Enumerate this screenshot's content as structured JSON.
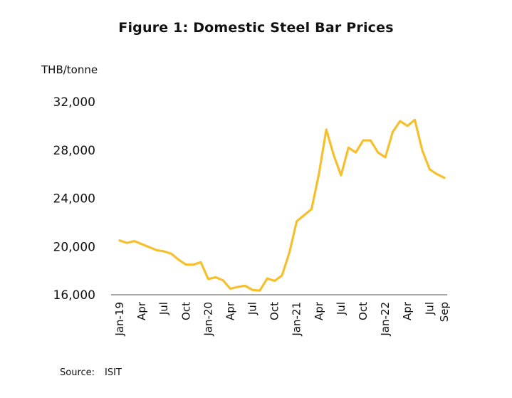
{
  "chart_data": {
    "type": "line",
    "title": "Figure 1: Domestic Steel Bar Prices",
    "ylabel": "THB/tonne",
    "xlabel": "",
    "ylim": [
      16000,
      32000
    ],
    "y_ticks": [
      "16,000",
      "20,000",
      "24,000",
      "28,000",
      "32,000"
    ],
    "y_tick_values": [
      16000,
      20000,
      24000,
      28000,
      32000
    ],
    "x": [
      "2019-01",
      "2019-02",
      "2019-03",
      "2019-04",
      "2019-05",
      "2019-06",
      "2019-07",
      "2019-08",
      "2019-09",
      "2019-10",
      "2019-11",
      "2019-12",
      "2020-01",
      "2020-02",
      "2020-03",
      "2020-04",
      "2020-05",
      "2020-06",
      "2020-07",
      "2020-08",
      "2020-09",
      "2020-10",
      "2020-11",
      "2020-12",
      "2021-01",
      "2021-02",
      "2021-03",
      "2021-04",
      "2021-05",
      "2021-06",
      "2021-07",
      "2021-08",
      "2021-09",
      "2021-10",
      "2021-11",
      "2021-12",
      "2022-01",
      "2022-02",
      "2022-03",
      "2022-04",
      "2022-05",
      "2022-06",
      "2022-07",
      "2022-08",
      "2022-09"
    ],
    "x_tick_labels": [
      {
        "label": "Jan-19",
        "index": 0
      },
      {
        "label": "Apr",
        "index": 3
      },
      {
        "label": "Jul",
        "index": 6
      },
      {
        "label": "Oct",
        "index": 9
      },
      {
        "label": "Jan-20",
        "index": 12
      },
      {
        "label": "Apr",
        "index": 15
      },
      {
        "label": "Jul",
        "index": 18
      },
      {
        "label": "Oct",
        "index": 21
      },
      {
        "label": "Jan-21",
        "index": 24
      },
      {
        "label": "Apr",
        "index": 27
      },
      {
        "label": "Jul",
        "index": 30
      },
      {
        "label": "Oct",
        "index": 33
      },
      {
        "label": "Jan-22",
        "index": 36
      },
      {
        "label": "Apr",
        "index": 39
      },
      {
        "label": "Jul",
        "index": 42
      },
      {
        "label": "Sep",
        "index": 44
      }
    ],
    "series": [
      {
        "values": [
          20500,
          20300,
          20450,
          20200,
          19950,
          19700,
          19600,
          19400,
          18900,
          18500,
          18500,
          18700,
          17300,
          17450,
          17200,
          16500,
          16650,
          16750,
          16400,
          16350,
          17350,
          17150,
          17600,
          19500,
          22100,
          22600,
          23100,
          26000,
          29700,
          27600,
          25900,
          28200,
          27800,
          28800,
          28800,
          27800,
          27400,
          29500,
          30400,
          30000,
          30500,
          28000,
          26400,
          26000,
          25700
        ],
        "color": "#F6C02D"
      }
    ],
    "grid": false,
    "legend": "none"
  },
  "source": {
    "label": "Source:",
    "value": "ISIT"
  }
}
